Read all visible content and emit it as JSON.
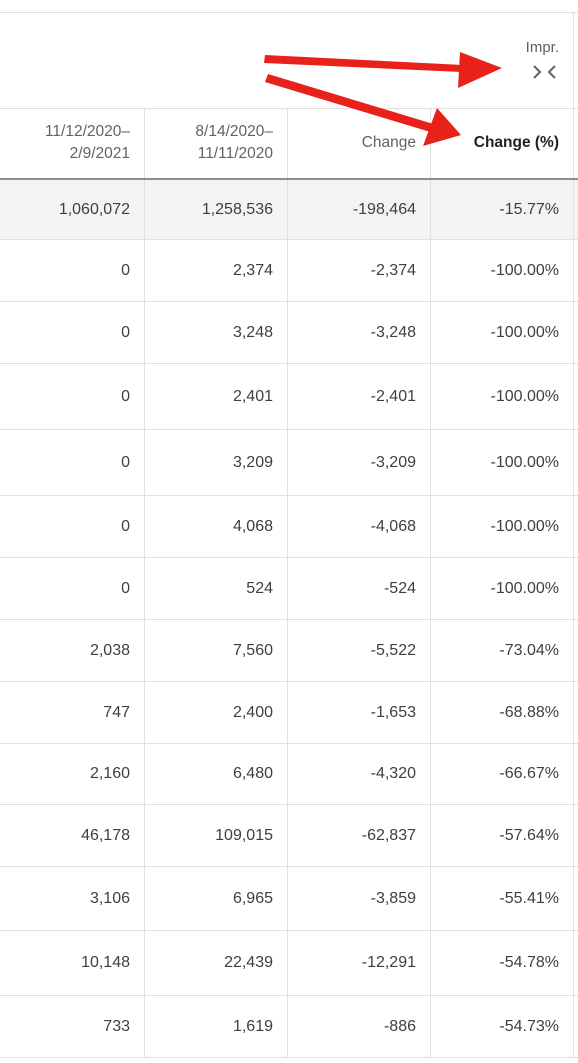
{
  "group_header": {
    "title": "Impr.",
    "collapse_icon": "collapse-columns-icon"
  },
  "columns": [
    {
      "label": "11/12/2020–\n2/9/2021"
    },
    {
      "label": "8/14/2020–\n11/11/2020"
    },
    {
      "label": "Change"
    },
    {
      "label": "Change (%)"
    }
  ],
  "rows": [
    {
      "current": "1,060,072",
      "previous": "1,258,536",
      "change": "-198,464",
      "change_pct": "-15.77%"
    },
    {
      "current": "0",
      "previous": "2,374",
      "change": "-2,374",
      "change_pct": "-100.00%"
    },
    {
      "current": "0",
      "previous": "3,248",
      "change": "-3,248",
      "change_pct": "-100.00%"
    },
    {
      "current": "0",
      "previous": "2,401",
      "change": "-2,401",
      "change_pct": "-100.00%"
    },
    {
      "current": "0",
      "previous": "3,209",
      "change": "-3,209",
      "change_pct": "-100.00%"
    },
    {
      "current": "0",
      "previous": "4,068",
      "change": "-4,068",
      "change_pct": "-100.00%"
    },
    {
      "current": "0",
      "previous": "524",
      "change": "-524",
      "change_pct": "-100.00%"
    },
    {
      "current": "2,038",
      "previous": "7,560",
      "change": "-5,522",
      "change_pct": "-73.04%"
    },
    {
      "current": "747",
      "previous": "2,400",
      "change": "-1,653",
      "change_pct": "-68.88%"
    },
    {
      "current": "2,160",
      "previous": "6,480",
      "change": "-4,320",
      "change_pct": "-66.67%"
    },
    {
      "current": "46,178",
      "previous": "109,015",
      "change": "-62,837",
      "change_pct": "-57.64%"
    },
    {
      "current": "3,106",
      "previous": "6,965",
      "change": "-3,859",
      "change_pct": "-55.41%"
    },
    {
      "current": "10,148",
      "previous": "22,439",
      "change": "-12,291",
      "change_pct": "-54.78%"
    },
    {
      "current": "733",
      "previous": "1,619",
      "change": "-886",
      "change_pct": "-54.73%"
    }
  ],
  "colors": {
    "annotation_arrow": "#e8211b",
    "grid": "#e0e0e0",
    "total_row_bg": "#f1f3f4"
  }
}
